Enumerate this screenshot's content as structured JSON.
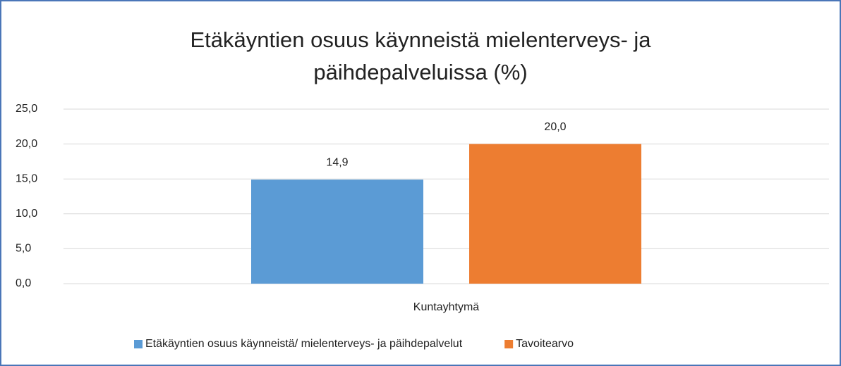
{
  "chart_data": {
    "type": "bar",
    "title": "Etäkäyntien osuus käynneistä mielenterveys- ja päihdepalveluissa (%)",
    "categories": [
      "Kuntayhtymä"
    ],
    "series": [
      {
        "name": "Etäkäyntien osuus käynneistä/ mielenterveys- ja päihdepalvelut",
        "color": "#5b9bd5",
        "values": [
          14.9
        ],
        "value_labels": [
          "14,9"
        ]
      },
      {
        "name": "Tavoitearvo",
        "color": "#ed7d31",
        "values": [
          20.0
        ],
        "value_labels": [
          "20,0"
        ]
      }
    ],
    "ylim": [
      0,
      25
    ],
    "yticks": [
      {
        "value": 0,
        "label": "0,0"
      },
      {
        "value": 5,
        "label": "5,0"
      },
      {
        "value": 10,
        "label": "10,0"
      },
      {
        "value": 15,
        "label": "15,0"
      },
      {
        "value": 20,
        "label": "20,0"
      },
      {
        "value": 25,
        "label": "25,0"
      }
    ],
    "grid": true,
    "legend": "bottom"
  }
}
